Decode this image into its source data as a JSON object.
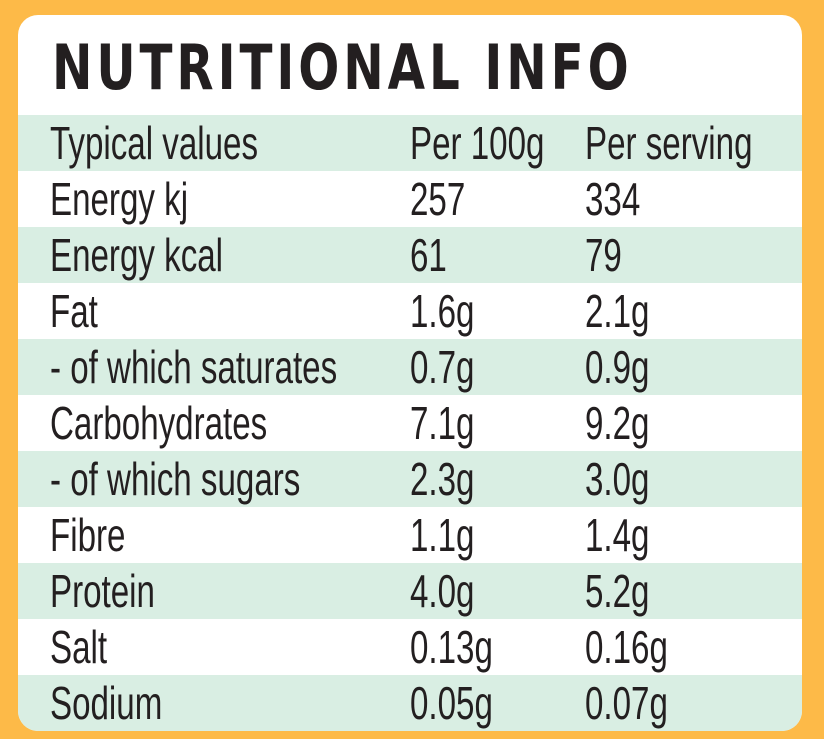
{
  "title": "NUTRITIONAL INFO",
  "header": [
    "Typical values",
    "Per 100g",
    "Per serving"
  ],
  "rows": [
    [
      "Energy kj",
      "257",
      "334"
    ],
    [
      "Energy kcal",
      "61",
      "79"
    ],
    [
      "Fat",
      "1.6g",
      "2.1g"
    ],
    [
      "- of which saturates",
      "0.7g",
      "0.9g"
    ],
    [
      "Carbohydrates",
      "7.1g",
      "9.2g"
    ],
    [
      "- of which sugars",
      "2.3g",
      "3.0g"
    ],
    [
      "Fibre",
      "1.1g",
      "1.4g"
    ],
    [
      "Protein",
      "4.0g",
      "5.2g"
    ],
    [
      "Salt",
      "0.13g",
      "0.16g"
    ],
    [
      "Sodium",
      "0.05g",
      "0.07g"
    ]
  ],
  "colors": {
    "background": "#FDBA48",
    "row_alt": "#D9EEE3",
    "text": "#231F20"
  }
}
